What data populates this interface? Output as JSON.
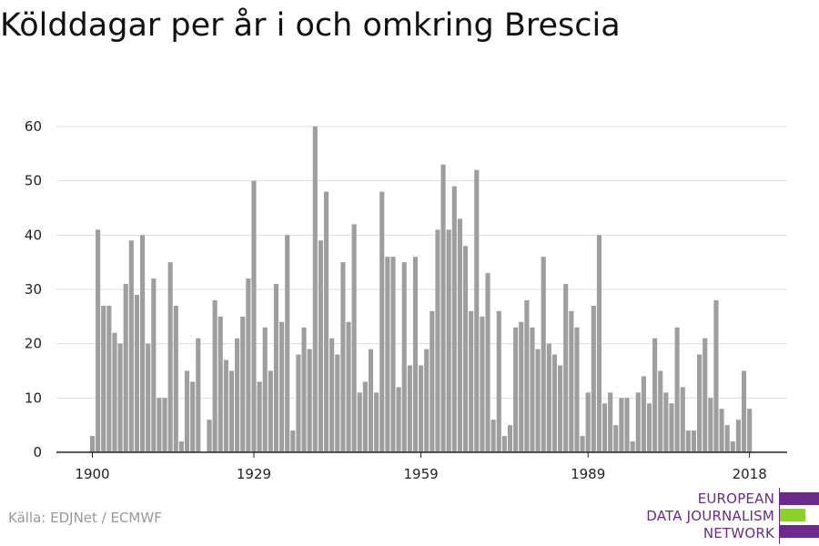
{
  "title": "Kölddagar per år i och omkring Brescia",
  "source": "Källa: EDJNet / ECMWF",
  "logo": {
    "lines": [
      "EUROPEAN",
      "DATA JOURNALISM",
      "NETWORK"
    ],
    "colors": {
      "purple": "#6b2a8c",
      "green": "#8cd12a"
    }
  },
  "chart_data": {
    "type": "bar",
    "title": "Kölddagar per år i och omkring Brescia",
    "xlabel": "",
    "ylabel": "",
    "x_start": 1900,
    "x_ticks": [
      1900,
      1929,
      1959,
      1989,
      2018
    ],
    "y_ticks": [
      0,
      10,
      20,
      30,
      40,
      50,
      60
    ],
    "ylim": [
      0,
      60
    ],
    "bar_color": "#9e9e9e",
    "grid": true,
    "values": [
      3,
      41,
      27,
      27,
      22,
      20,
      31,
      39,
      29,
      40,
      20,
      32,
      10,
      10,
      35,
      27,
      2,
      15,
      13,
      21,
      0,
      6,
      28,
      25,
      17,
      15,
      21,
      25,
      32,
      50,
      13,
      23,
      15,
      31,
      24,
      40,
      4,
      18,
      23,
      19,
      60,
      39,
      48,
      21,
      18,
      35,
      24,
      42,
      11,
      13,
      19,
      11,
      48,
      36,
      36,
      12,
      35,
      16,
      36,
      16,
      19,
      26,
      41,
      53,
      41,
      49,
      43,
      38,
      26,
      52,
      25,
      33,
      6,
      26,
      3,
      5,
      23,
      24,
      28,
      23,
      19,
      36,
      20,
      18,
      16,
      31,
      26,
      23,
      3,
      11,
      27,
      40,
      9,
      11,
      5,
      10,
      10,
      2,
      11,
      14,
      9,
      21,
      15,
      11,
      9,
      23,
      12,
      4,
      4,
      18,
      21,
      10,
      28,
      8,
      5,
      2,
      6,
      15,
      8
    ]
  }
}
